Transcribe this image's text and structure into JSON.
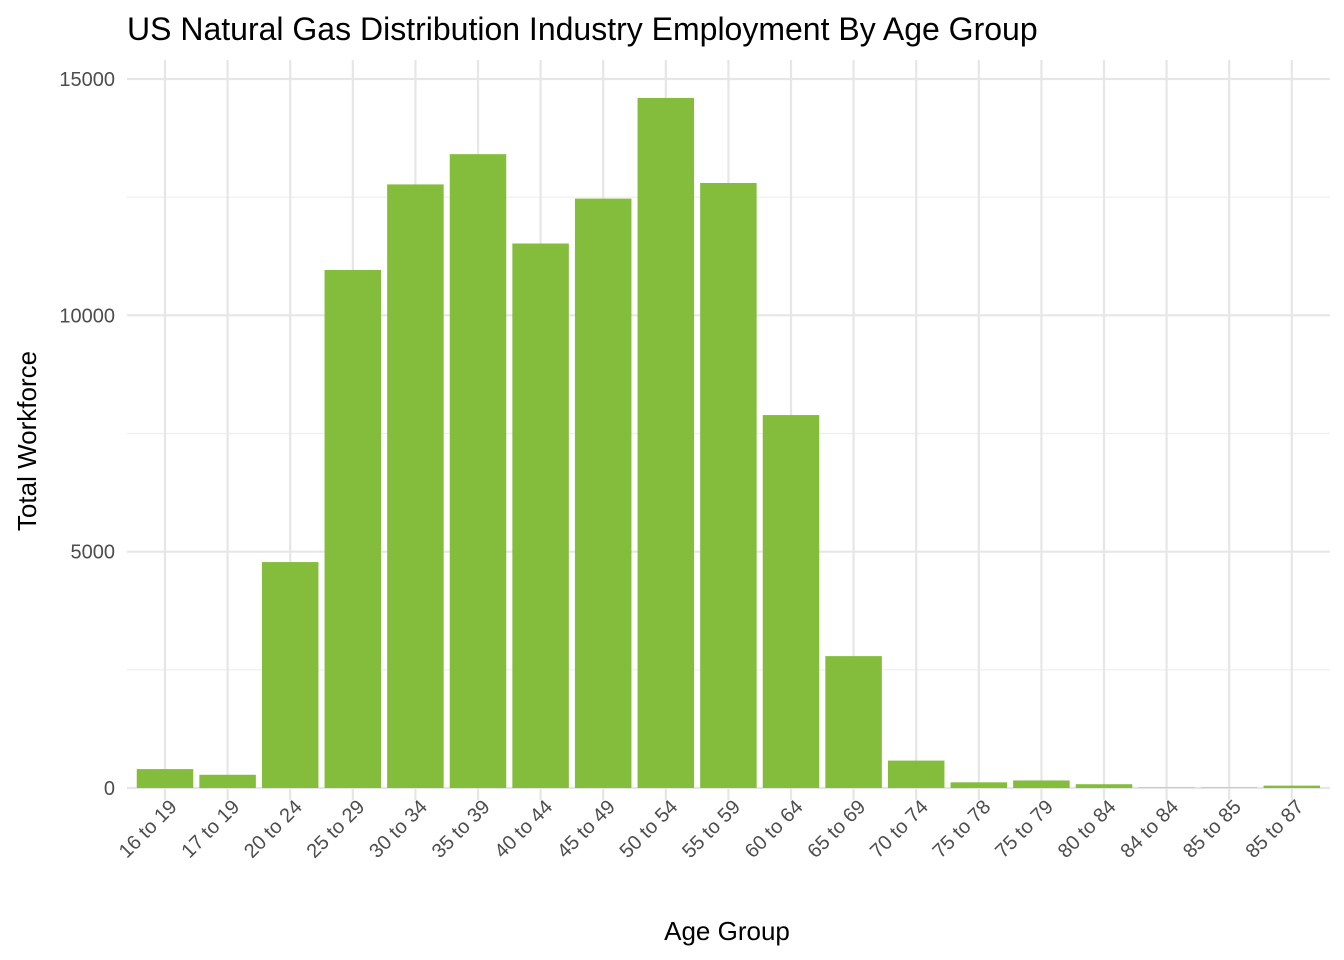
{
  "chart_data": {
    "type": "bar",
    "title": "US Natural Gas Distribution Industry Employment By Age Group",
    "xlabel": "Age Group",
    "ylabel": "Total Workforce",
    "categories": [
      "16 to 19",
      "17 to 19",
      "20 to 24",
      "25 to 29",
      "30 to 34",
      "35 to 39",
      "40 to 44",
      "45 to 49",
      "50 to 54",
      "55 to 59",
      "60 to 64",
      "65 to 69",
      "70 to 74",
      "75 to 78",
      "75 to 79",
      "80 to 84",
      "84 to 84",
      "85 to 85",
      "85 to 87"
    ],
    "values": [
      400,
      280,
      4780,
      10960,
      12770,
      13410,
      11520,
      12470,
      14600,
      12800,
      7890,
      2790,
      580,
      120,
      160,
      80,
      8,
      8,
      50
    ],
    "ylim": [
      0,
      15000
    ],
    "yticks": [
      0,
      5000,
      10000,
      15000
    ],
    "ytick_labels": [
      "0",
      "5000",
      "10000",
      "15000"
    ],
    "bar_color": "#84bd3c",
    "grid": true
  }
}
